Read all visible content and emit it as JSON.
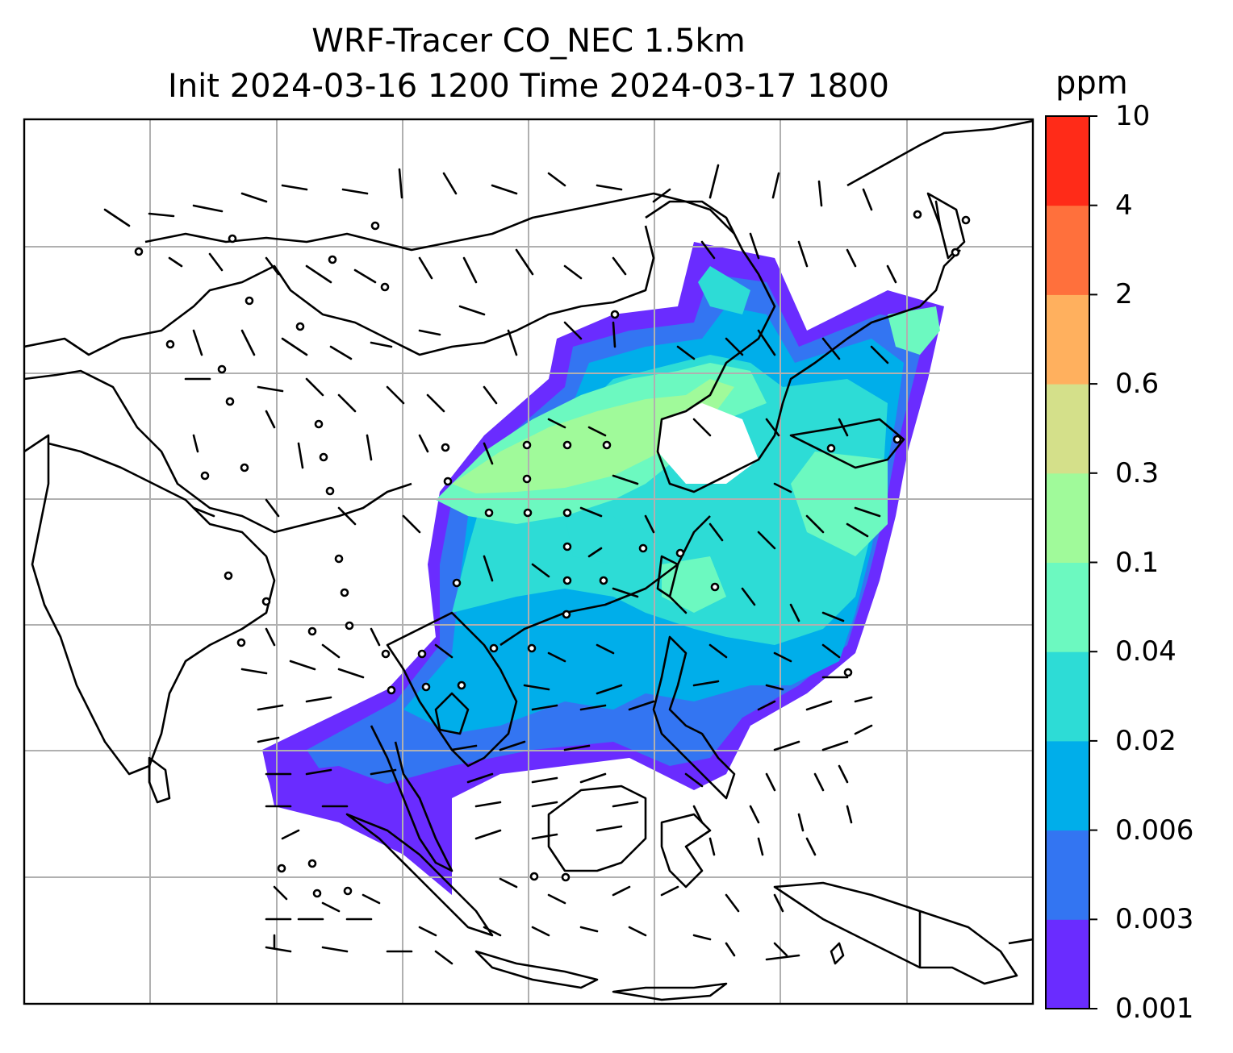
{
  "title": {
    "line1": "WRF-Tracer CO_NEC 1.5km",
    "line2": "Init 2024-03-16 1200 Time 2024-03-17 1800"
  },
  "colorbar": {
    "unit": "ppm",
    "levels": [
      "0.001",
      "0.003",
      "0.006",
      "0.02",
      "0.04",
      "0.1",
      "0.3",
      "0.6",
      "2",
      "4",
      "10"
    ],
    "colors": [
      "#6a2cff",
      "#3375f2",
      "#00aeea",
      "#2ddcd6",
      "#6cf9c0",
      "#a0fa9a",
      "#d4e08a",
      "#ffb05e",
      "#ff703c",
      "#ff2b18"
    ]
  },
  "map": {
    "grid": true,
    "features": [
      "coastlines",
      "country-borders",
      "wind-barbs",
      "gridlines"
    ]
  }
}
